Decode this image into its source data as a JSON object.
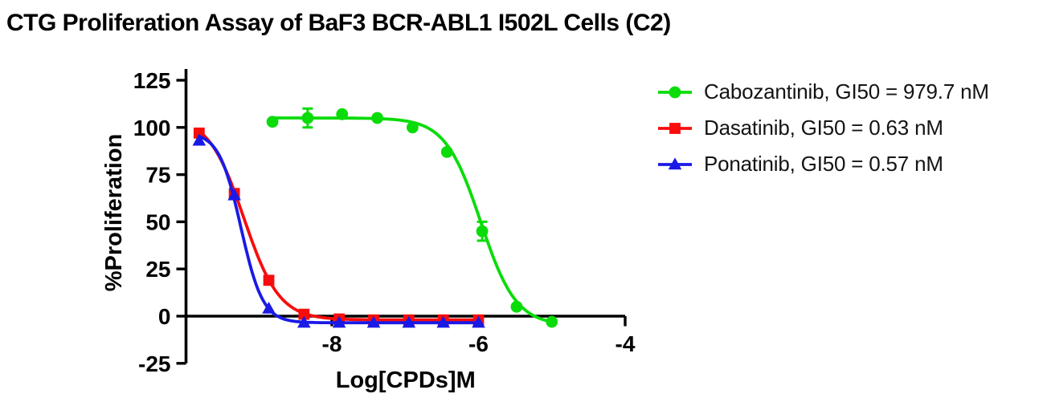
{
  "title": "CTG Proliferation Assay of BaF3 BCR-ABL1 I502L Cells (C2)",
  "chart_data": {
    "type": "line",
    "title": "CTG Proliferation Assay of BaF3 BCR-ABL1 I502L Cells (C2)",
    "xlabel": "Log[CPDs]M",
    "ylabel": "%Proliferation",
    "xlim": [
      -10,
      -4
    ],
    "ylim": [
      -25,
      125
    ],
    "x_ticks": [
      "-8",
      "-6",
      "-4"
    ],
    "x_tick_values": [
      -8,
      -6,
      -4
    ],
    "y_ticks": [
      "125",
      "100",
      "75",
      "50",
      "25",
      "0",
      "-25"
    ],
    "y_tick_values": [
      125,
      100,
      75,
      50,
      25,
      0,
      -25
    ],
    "grid": false,
    "legend_position": "right",
    "axis_color": "#000000",
    "series": [
      {
        "name": "Cabozantinib",
        "label": "Cabozantinib, GI50 = 979.7 nM",
        "gi50": "979.7 nM",
        "color": "#0ADC0A",
        "marker": "circle",
        "x": [
          -8.81,
          -8.33,
          -7.86,
          -7.38,
          -6.9,
          -6.43,
          -5.95,
          -5.48,
          -5.0
        ],
        "y": [
          103,
          105,
          107,
          105,
          100,
          87,
          45,
          5,
          -3
        ],
        "yerr": [
          0,
          5,
          0,
          0,
          0,
          0,
          5,
          0,
          0
        ],
        "fit": {
          "top": 105,
          "bottom": -5,
          "logIC50": -5.97,
          "hill": 1.8
        }
      },
      {
        "name": "Dasatinib",
        "label": "Dasatinib, GI50 = 0.63 nM",
        "gi50": "0.63 nM",
        "color": "#F80D0D",
        "marker": "square",
        "x": [
          -9.81,
          -9.33,
          -8.86,
          -8.38,
          -7.9,
          -7.43,
          -6.95,
          -6.48,
          -6.0
        ],
        "y": [
          97,
          65,
          19,
          1,
          -1.5,
          -2,
          -2,
          -2,
          -2
        ],
        "yerr": [
          0,
          0,
          0,
          0,
          0,
          0,
          0,
          0,
          0
        ],
        "fit": {
          "top": 106,
          "bottom": -2,
          "logIC50": -9.2,
          "hill": 1.8
        }
      },
      {
        "name": "Ponatinib",
        "label": "Ponatinib, GI50 = 0.57 nM",
        "gi50": "0.57 nM",
        "color": "#1A1AE6",
        "marker": "triangle",
        "x": [
          -9.81,
          -9.33,
          -8.86,
          -8.38,
          -7.9,
          -7.43,
          -6.95,
          -6.48,
          -6.0
        ],
        "y": [
          93,
          64,
          4,
          -3.5,
          -3.5,
          -3.5,
          -3.5,
          -3.5,
          -3.5
        ],
        "yerr": [
          0,
          0,
          0,
          0,
          0,
          0,
          0,
          0,
          0
        ],
        "fit": {
          "top": 97.5,
          "bottom": -3.5,
          "logIC50": -9.24,
          "hill": 2.9
        }
      }
    ]
  }
}
